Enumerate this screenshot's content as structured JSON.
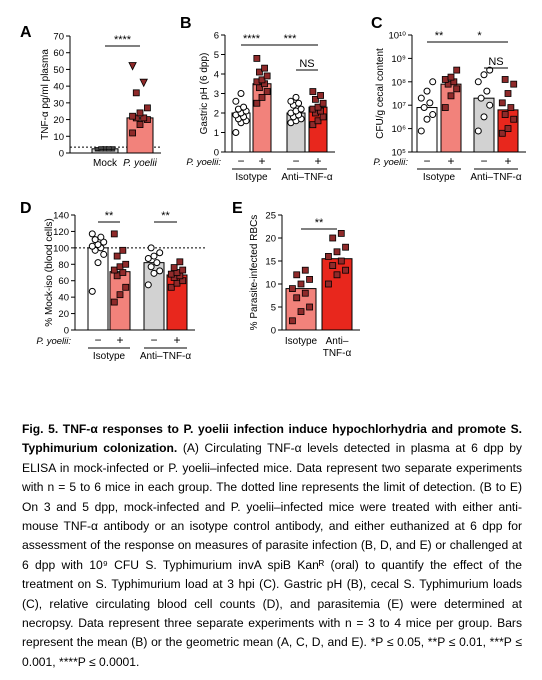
{
  "chart_data": [
    {
      "panel": "A",
      "type": "bar",
      "ylabel": "TNF-α pg/ml plasma",
      "ylim": [
        0,
        70
      ],
      "yticks": [
        "0",
        "10",
        "20",
        "30",
        "40",
        "50",
        "60",
        "70"
      ],
      "categories": [
        "Mock",
        "P. yoelii"
      ],
      "values": [
        2.5,
        21
      ],
      "points": [
        [
          2,
          2,
          2,
          2,
          2,
          2.5,
          3,
          3,
          3,
          3
        ],
        [
          12,
          17,
          20,
          21,
          21,
          22,
          24,
          27,
          36,
          42,
          52
        ]
      ],
      "detection_limit": 3.5,
      "significance": [
        {
          "pair": [
            0,
            1
          ],
          "label": "****"
        }
      ]
    },
    {
      "panel": "B",
      "type": "bar",
      "ylabel": "Gastric pH (6 dpp)",
      "ylim": [
        0,
        6
      ],
      "yticks": [
        "0",
        "1",
        "2",
        "3",
        "4",
        "5",
        "6"
      ],
      "categories": [
        "−",
        "+",
        "−",
        "+"
      ],
      "group_labels": [
        "Isotype",
        "Anti–TNF-α"
      ],
      "row_label": "P. yoelii:",
      "values": [
        2.0,
        3.5,
        2.0,
        2.3
      ],
      "points": [
        [
          1.0,
          1.5,
          1.6,
          1.7,
          1.8,
          1.9,
          2.0,
          2.1,
          2.2,
          2.3,
          2.6,
          3.0
        ],
        [
          2.5,
          2.8,
          3.1,
          3.3,
          3.5,
          3.6,
          3.7,
          3.9,
          4.1,
          4.3,
          4.8
        ],
        [
          1.5,
          1.6,
          1.7,
          1.8,
          1.9,
          2.0,
          2.1,
          2.2,
          2.4,
          2.5,
          2.6,
          2.8
        ],
        [
          1.4,
          1.6,
          1.8,
          2.0,
          2.1,
          2.2,
          2.3,
          2.5,
          2.7,
          2.9,
          3.1
        ]
      ],
      "significance": [
        {
          "pair": [
            0,
            1
          ],
          "label": "****"
        },
        {
          "pair": [
            1,
            3
          ],
          "label": "***"
        },
        {
          "pair": [
            2,
            3
          ],
          "label": "NS"
        }
      ]
    },
    {
      "panel": "C",
      "type": "bar",
      "ylabel": "CFU/g cecal content",
      "yscale": "log",
      "ylim": [
        5,
        10
      ],
      "yticks": [
        "10⁵",
        "10⁶",
        "10⁷",
        "10⁸",
        "10⁹",
        "10¹⁰"
      ],
      "categories": [
        "−",
        "+",
        "−",
        "+"
      ],
      "group_labels": [
        "Isotype",
        "Anti–TNF-α"
      ],
      "row_label": "P. yoelii:",
      "values": [
        6.9,
        7.9,
        7.3,
        6.8
      ],
      "points": [
        [
          5.9,
          6.4,
          6.6,
          6.9,
          7.1,
          7.3,
          7.6,
          8.0
        ],
        [
          6.9,
          7.4,
          7.7,
          7.9,
          8.0,
          8.1,
          8.2,
          8.5
        ],
        [
          5.9,
          6.5,
          7.0,
          7.3,
          7.6,
          8.0,
          8.3,
          8.5
        ],
        [
          5.8,
          6.0,
          6.4,
          6.6,
          6.9,
          7.1,
          7.5,
          7.9,
          8.1
        ]
      ],
      "significance": [
        {
          "pair": [
            0,
            1
          ],
          "label": "**"
        },
        {
          "pair": [
            1,
            3
          ],
          "label": "*"
        },
        {
          "pair": [
            2,
            3
          ],
          "label": "NS"
        }
      ]
    },
    {
      "panel": "D",
      "type": "bar",
      "ylabel": "% Mock-iso (blood cells)",
      "ylim": [
        0,
        140
      ],
      "yticks": [
        "0",
        "20",
        "40",
        "60",
        "80",
        "100",
        "120",
        "140"
      ],
      "categories": [
        "−",
        "+",
        "−",
        "+"
      ],
      "group_labels": [
        "Isotype",
        "Anti–TNF-α"
      ],
      "row_label": "P. yoelii:",
      "values": [
        100,
        71,
        82,
        67
      ],
      "points": [
        [
          47,
          82,
          92,
          97,
          100,
          102,
          104,
          107,
          110,
          113,
          117
        ],
        [
          34,
          43,
          52,
          66,
          70,
          73,
          77,
          80,
          90,
          97,
          117
        ],
        [
          55,
          69,
          72,
          77,
          82,
          87,
          90,
          94,
          100
        ],
        [
          52,
          57,
          60,
          64,
          66,
          68,
          70,
          73,
          76,
          83
        ]
      ],
      "reference_line": 100,
      "significance": [
        {
          "pair": [
            0,
            1
          ],
          "label": "**"
        },
        {
          "pair": [
            2,
            3
          ],
          "label": "**"
        }
      ]
    },
    {
      "panel": "E",
      "type": "bar",
      "ylabel": "% Parasite-infected RBCs",
      "ylim": [
        0,
        25
      ],
      "yticks": [
        "0",
        "5",
        "10",
        "15",
        "20",
        "25"
      ],
      "categories": [
        "Isotype",
        "Anti–\nTNF-α"
      ],
      "values": [
        9,
        15.5
      ],
      "points": [
        [
          2,
          4,
          5,
          7,
          8,
          9,
          10,
          11,
          12,
          13
        ],
        [
          10,
          12,
          13,
          14,
          15,
          16,
          17,
          18,
          20,
          21
        ]
      ],
      "significance": [
        {
          "pair": [
            0,
            1
          ],
          "label": "**"
        }
      ]
    }
  ],
  "colors": {
    "isotype_mock": "#ffffff",
    "isotype_infected": "#f2827b",
    "anti_tnf_mock": "#d2d2d2",
    "anti_tnf_infected": "#e8271d",
    "point_outline": "#000000",
    "point_fill": "#8f2a2a"
  },
  "caption": {
    "title": "Fig. 5. TNF-α responses to P. yoelii infection induce hypochlorhydria and promote S. Typhimurium colonization.",
    "body": " (A) Circulating TNF-α levels detected in plasma at 6 dpp by ELISA in mock-infected or P. yoelii–infected mice. Data represent two separate experiments with n = 5 to 6 mice in each group. The dotted line represents the limit of detection. (B to E) On 3 and 5 dpp, mock-infected and P. yoelii–infected mice were treated with either anti-mouse TNF-α antibody or an isotype control antibody, and either euthanized at 6 dpp for assessment of the response on measures of parasite infection (B, D, and E) or challenged at 6 dpp with 10⁹ CFU S. Typhimurium invA spiB Kanᴿ (oral) to quantify the effect of the treatment on S. Typhimurium load at 3 hpi (C). Gastric pH (B), cecal S. Typhimurium loads (C), relative circulating blood cell counts (D), and parasitemia (E) were determined at necropsy. Data represent three separate experiments with n = 3 to 4 mice per group. Bars represent the mean (B) or the geometric mean (A, C, D, and E). *P ≤ 0.05, **P ≤ 0.01, ***P ≤ 0.001, ****P ≤ 0.0001."
  }
}
